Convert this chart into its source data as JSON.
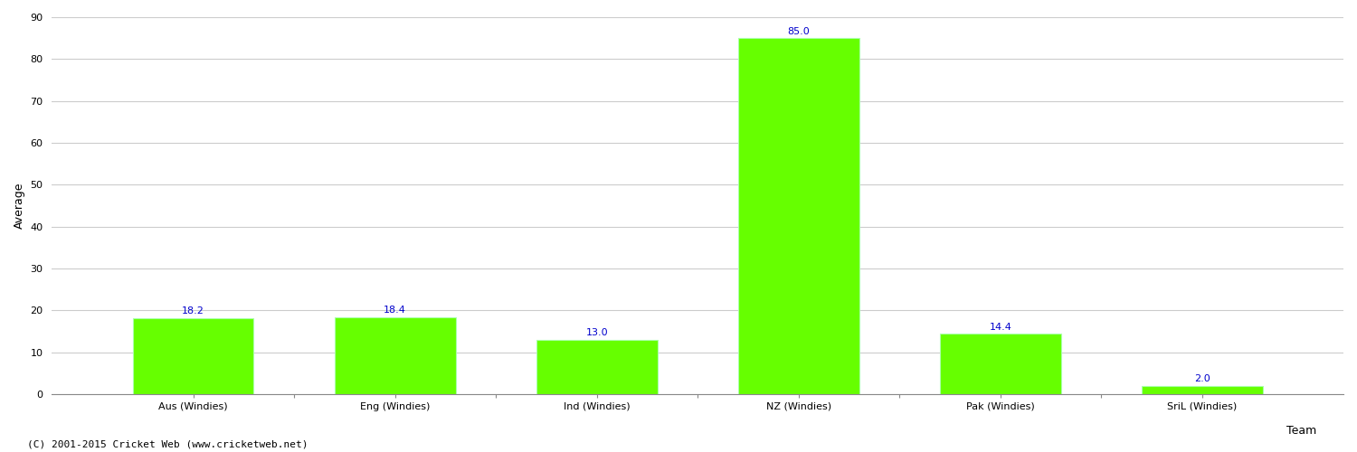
{
  "categories": [
    "Aus (Windies)",
    "Eng (Windies)",
    "Ind (Windies)",
    "NZ (Windies)",
    "Pak (Windies)",
    "SriL (Windies)"
  ],
  "values": [
    18.2,
    18.4,
    13.0,
    85.0,
    14.4,
    2.0
  ],
  "bar_color": "#66ff00",
  "bar_edge_color": "#aaffaa",
  "label_color": "#0000cc",
  "xlabel": "Team",
  "ylabel": "Average",
  "ylim": [
    0,
    90
  ],
  "yticks": [
    0,
    10,
    20,
    30,
    40,
    50,
    60,
    70,
    80,
    90
  ],
  "grid_color": "#cccccc",
  "background_color": "#ffffff",
  "footer": "(C) 2001-2015 Cricket Web (www.cricketweb.net)",
  "label_fontsize": 8,
  "axis_fontsize": 9,
  "tick_fontsize": 8,
  "footer_fontsize": 8,
  "bar_width": 0.6
}
